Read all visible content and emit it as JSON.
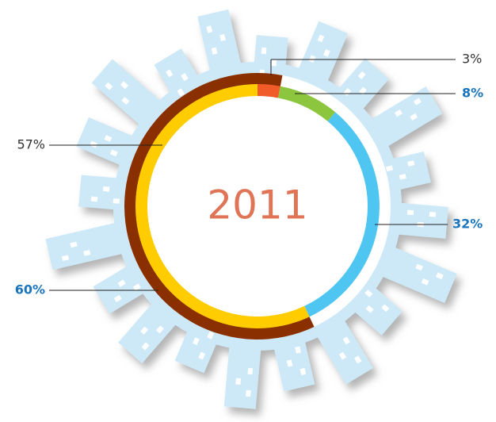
{
  "chart_data": {
    "type": "donut",
    "title": "2011",
    "title_color": "#e07456",
    "series": [
      {
        "values": [
          3,
          8,
          32,
          57
        ],
        "value_labels": [
          "3%",
          "8%",
          "32%",
          "57%"
        ],
        "colors": [
          "#f15a29",
          "#8cc63f",
          "#4fc6f2",
          "#ffcc00"
        ],
        "label_colors": [
          "#333333",
          "#1a75bc",
          "#1a75bc",
          "#333333"
        ],
        "label_bold": [
          false,
          true,
          true,
          false
        ]
      },
      {
        "values": [
          60
        ],
        "value_labels": [
          "60%"
        ],
        "colors": [
          "#8a2f00"
        ],
        "label_colors": [
          "#1a75bc"
        ],
        "label_bold": [
          true
        ]
      }
    ]
  }
}
